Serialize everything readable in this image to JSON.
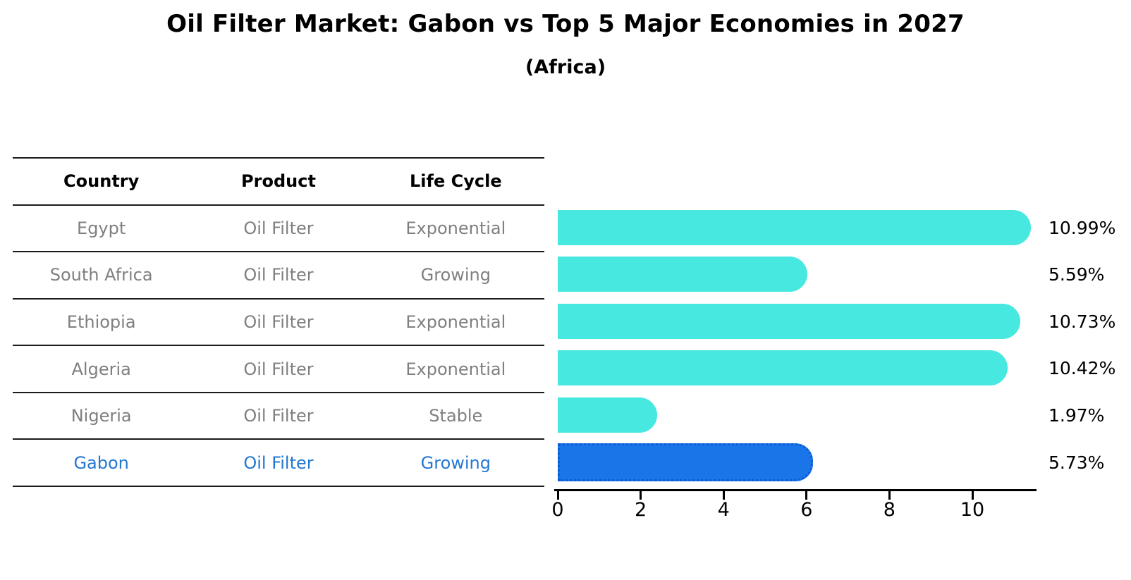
{
  "title": "Oil Filter Market: Gabon vs Top 5 Major Economies in 2027",
  "subtitle": "(Africa)",
  "table": {
    "headers": [
      "Country",
      "Product",
      "Life Cycle"
    ]
  },
  "rows": [
    {
      "country": "Egypt",
      "product": "Oil Filter",
      "life_cycle": "Exponential",
      "value": 10.99,
      "label": "10.99%",
      "highlight": false
    },
    {
      "country": "South Africa",
      "product": "Oil Filter",
      "life_cycle": "Growing",
      "value": 5.59,
      "label": "5.59%",
      "highlight": false
    },
    {
      "country": "Ethiopia",
      "product": "Oil Filter",
      "life_cycle": "Exponential",
      "value": 10.73,
      "label": "10.73%",
      "highlight": false
    },
    {
      "country": "Algeria",
      "product": "Oil Filter",
      "life_cycle": "Exponential",
      "value": 10.42,
      "label": "10.42%",
      "highlight": false
    },
    {
      "country": "Nigeria",
      "product": "Oil Filter",
      "life_cycle": "Stable",
      "value": 1.97,
      "label": "1.97%",
      "highlight": false
    },
    {
      "country": "Gabon",
      "product": "Oil Filter",
      "life_cycle": "Growing",
      "value": 5.73,
      "label": "5.73%",
      "highlight": true
    }
  ],
  "chart_data": {
    "type": "bar",
    "orientation": "horizontal",
    "title": "Oil Filter Market: Gabon vs Top 5 Major Economies in 2027",
    "subtitle": "(Africa)",
    "categories": [
      "Egypt",
      "South Africa",
      "Ethiopia",
      "Algeria",
      "Nigeria",
      "Gabon"
    ],
    "values": [
      10.99,
      5.59,
      10.73,
      10.42,
      1.97,
      5.73
    ],
    "value_labels": [
      "10.99%",
      "5.59%",
      "10.73%",
      "10.42%",
      "1.97%",
      "5.73%"
    ],
    "highlight_category": "Gabon",
    "xticks": [
      0,
      2,
      4,
      6,
      8,
      10
    ],
    "xlim": [
      0,
      11.55
    ],
    "grid": false,
    "legend": "none",
    "bar_color": "#47e8e0",
    "highlight_bar_color": "#1a76e8"
  },
  "colors": {
    "bar_cyan": "#47e8e0",
    "bar_blue": "#1a76e8",
    "bar_blue_border": "#0b5bd7",
    "table_text_gray": "#7f7f7f",
    "highlight_text_blue": "#2277d2",
    "axis_black": "#000000"
  }
}
